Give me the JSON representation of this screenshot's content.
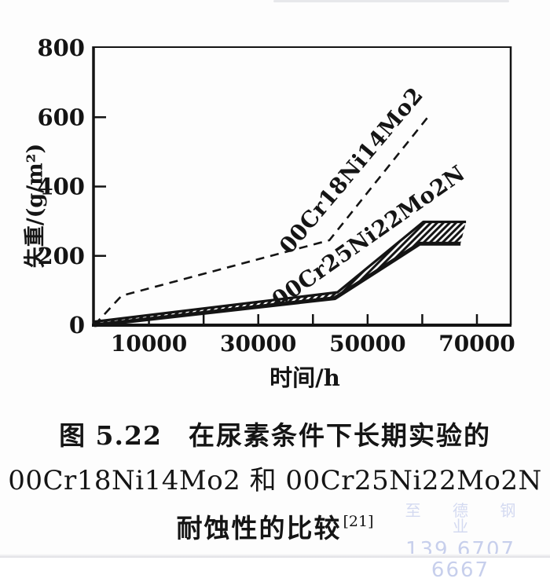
{
  "figure": {
    "caption": {
      "fig_label": "图 5.22",
      "line1": "在尿素条件下长期实验的",
      "line2": "00Cr18Ni14Mo2 和 00Cr25Ni22Mo2N",
      "line3": "耐蚀性的比较",
      "reference": "[21]"
    },
    "watermark": {
      "line1": "至 德 钢 业",
      "line2": "139 6707 6667",
      "color": "#cdd4ef"
    }
  },
  "chart_data": {
    "type": "line",
    "title": "",
    "xlabel": "时间/h",
    "ylabel": "失重/(g/m²)",
    "xlim": [
      0,
      76000
    ],
    "ylim": [
      0,
      800
    ],
    "grid": false,
    "frame": true,
    "ink_color": "#141414",
    "x_ticks": [
      10000,
      20000,
      30000,
      40000,
      50000,
      60000,
      70000
    ],
    "x_tick_labels": [
      10000,
      30000,
      50000,
      70000
    ],
    "y_ticks": [
      0,
      200,
      400,
      600,
      800
    ],
    "legend_position": "labels-along-curves",
    "series": [
      {
        "name": "00Cr18Ni14Mo2",
        "kind": "line",
        "style": "dashed",
        "color": "#141414",
        "points": [
          [
            0,
            0
          ],
          [
            5000,
            85
          ],
          [
            43000,
            245
          ],
          [
            61000,
            600
          ]
        ]
      },
      {
        "name": "00Cr25Ni22Mo2N",
        "kind": "band",
        "style": "hatched",
        "color": "#141414",
        "lower": [
          [
            0,
            0
          ],
          [
            44000,
            78
          ],
          [
            59500,
            235
          ],
          [
            67000,
            235
          ]
        ],
        "upper": [
          [
            0,
            10
          ],
          [
            44500,
            95
          ],
          [
            60200,
            298
          ],
          [
            68000,
            298
          ]
        ]
      }
    ]
  }
}
